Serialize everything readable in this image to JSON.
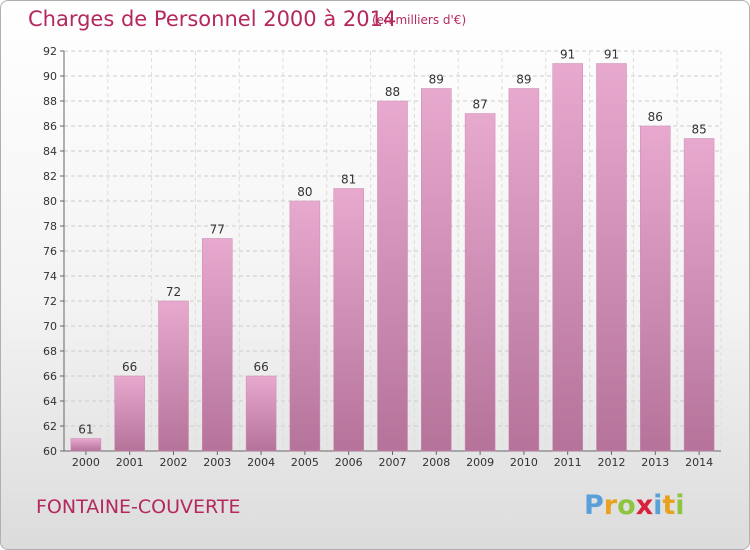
{
  "header": {
    "title": "Charges de Personnel 2000 à 2014",
    "unit": "(en milliers d'€)"
  },
  "footer": {
    "commune": "FONTAINE-COUVERTE",
    "logo": [
      "P",
      "r",
      "o",
      "x",
      "i",
      "t",
      "i"
    ]
  },
  "colors": {
    "title": "#b5285f",
    "bar_top": "#e8a9cf",
    "bar_bottom": "#b5739a",
    "logo": [
      "#5aa0d8",
      "#e8a21f",
      "#8fc43e",
      "#d9213d",
      "#5aa0d8",
      "#e8a21f",
      "#8fc43e"
    ]
  },
  "chart_data": {
    "type": "bar",
    "title": "Charges de Personnel 2000 à 2014",
    "subtitle": "(en milliers d'€)",
    "categories": [
      "2000",
      "2001",
      "2002",
      "2003",
      "2004",
      "2005",
      "2006",
      "2007",
      "2008",
      "2009",
      "2010",
      "2011",
      "2012",
      "2013",
      "2014"
    ],
    "values": [
      61,
      66,
      72,
      77,
      66,
      80,
      81,
      88,
      89,
      87,
      89,
      91,
      91,
      86,
      85
    ],
    "ylim": [
      60,
      92
    ],
    "yticks": [
      60,
      62,
      64,
      66,
      68,
      70,
      72,
      74,
      76,
      78,
      80,
      82,
      84,
      86,
      88,
      90,
      92
    ],
    "grid": true,
    "legend": "none"
  }
}
